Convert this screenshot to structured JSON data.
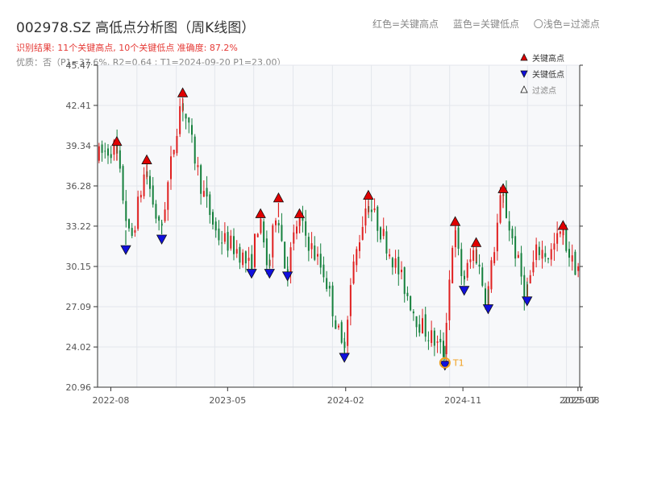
{
  "header": {
    "title": "002978.SZ 高低点分析图（周K线图）",
    "result": "识别结果: 11个关键高点, 10个关键低点  准确度: 87.2%",
    "quality": "优质：否（P1=37.6%, R2=0.64 ; T1=2024-09-20 P1=23.00）",
    "color_notes": [
      "红色=关键高点",
      "蓝色=关键低点",
      "〇浅色=过滤点"
    ]
  },
  "colors": {
    "up": "#e02020",
    "down": "#15803d",
    "high_marker": "#e00000",
    "low_marker": "#1010dd",
    "t1_marker": "#f0a020",
    "grid": "#e3e6ec",
    "plot_bg": "#f7f8fa"
  },
  "chart_data": {
    "type": "candlestick",
    "title": "002978.SZ 高低点分析图（周K线图）",
    "x_axis": {
      "type": "date",
      "range": [
        "2022-07-01",
        "2025-08-01"
      ],
      "tick_labels": [
        "2022-08",
        "2023-05",
        "2024-02",
        "2024-11",
        "2025-07",
        "2025-08"
      ],
      "tick_dates": [
        "2022-08-01",
        "2023-05-01",
        "2024-02-01",
        "2024-11-01",
        "2025-07-28",
        "2025-08-04"
      ]
    },
    "y_axis": {
      "range": [
        20.96,
        45.47
      ],
      "tick_labels": [
        "20.96",
        "24.02",
        "27.09",
        "30.15",
        "33.22",
        "36.28",
        "39.34",
        "42.41",
        "45.47"
      ]
    },
    "grid": true,
    "legend": {
      "placement": "top-right",
      "entries": [
        {
          "label": "关键高点",
          "marker": "triangle-up",
          "color": "#e00000"
        },
        {
          "label": "关键低点",
          "marker": "triangle-down",
          "color": "#1010dd"
        },
        {
          "label": "过滤点",
          "marker": "triangle-up-outline",
          "color": "#999999"
        }
      ]
    },
    "anchors": [
      [
        "2022-07-01",
        38.5
      ],
      [
        "2022-08-15",
        39.3
      ],
      [
        "2022-09-19",
        31.8
      ],
      [
        "2022-10-24",
        37.6
      ],
      [
        "2022-11-28",
        32.6
      ],
      [
        "2023-01-16",
        43.0
      ],
      [
        "2023-03-06",
        36.0
      ],
      [
        "2023-04-10",
        32.5
      ],
      [
        "2023-05-29",
        31.4
      ],
      [
        "2023-06-26",
        30.0
      ],
      [
        "2023-07-17",
        33.8
      ],
      [
        "2023-08-07",
        29.8
      ],
      [
        "2023-08-28",
        35.0
      ],
      [
        "2023-09-18",
        29.5
      ],
      [
        "2023-10-16",
        33.8
      ],
      [
        "2023-11-13",
        31.8
      ],
      [
        "2023-12-18",
        29.5
      ],
      [
        "2024-01-29",
        23.6
      ],
      [
        "2024-02-19",
        29.5
      ],
      [
        "2024-03-25",
        35.2
      ],
      [
        "2024-05-06",
        32.2
      ],
      [
        "2024-06-10",
        29.5
      ],
      [
        "2024-07-22",
        26.0
      ],
      [
        "2024-09-20",
        23.6
      ],
      [
        "2024-10-14",
        33.2
      ],
      [
        "2024-11-04",
        29.0
      ],
      [
        "2024-12-02",
        31.5
      ],
      [
        "2024-12-30",
        27.5
      ],
      [
        "2025-02-03",
        35.7
      ],
      [
        "2025-03-03",
        31.8
      ],
      [
        "2025-03-31",
        28.0
      ],
      [
        "2025-04-28",
        31.5
      ],
      [
        "2025-05-26",
        31.0
      ],
      [
        "2025-06-23",
        32.8
      ],
      [
        "2025-07-21",
        30.2
      ]
    ],
    "key_highs": [
      {
        "date": "2022-08-15",
        "price": 39.3
      },
      {
        "date": "2022-10-24",
        "price": 37.9
      },
      {
        "date": "2023-01-16",
        "price": 43.0
      },
      {
        "date": "2023-07-17",
        "price": 33.8
      },
      {
        "date": "2023-08-28",
        "price": 35.0
      },
      {
        "date": "2023-10-16",
        "price": 33.8
      },
      {
        "date": "2024-03-25",
        "price": 35.2
      },
      {
        "date": "2024-10-14",
        "price": 33.2
      },
      {
        "date": "2024-12-02",
        "price": 31.6
      },
      {
        "date": "2025-02-03",
        "price": 35.7
      },
      {
        "date": "2025-06-23",
        "price": 32.9
      }
    ],
    "key_lows": [
      {
        "date": "2022-09-05",
        "price": 31.8
      },
      {
        "date": "2022-11-28",
        "price": 32.6
      },
      {
        "date": "2023-06-26",
        "price": 30.0
      },
      {
        "date": "2023-08-07",
        "price": 30.0
      },
      {
        "date": "2023-09-18",
        "price": 29.8
      },
      {
        "date": "2024-01-29",
        "price": 23.6
      },
      {
        "date": "2024-09-20",
        "price": 23.0
      },
      {
        "date": "2024-11-04",
        "price": 28.7
      },
      {
        "date": "2024-12-30",
        "price": 27.3
      },
      {
        "date": "2025-03-31",
        "price": 27.9
      }
    ],
    "annotations": [
      {
        "label": "T1",
        "date": "2024-09-20",
        "price": 23.0
      }
    ]
  }
}
